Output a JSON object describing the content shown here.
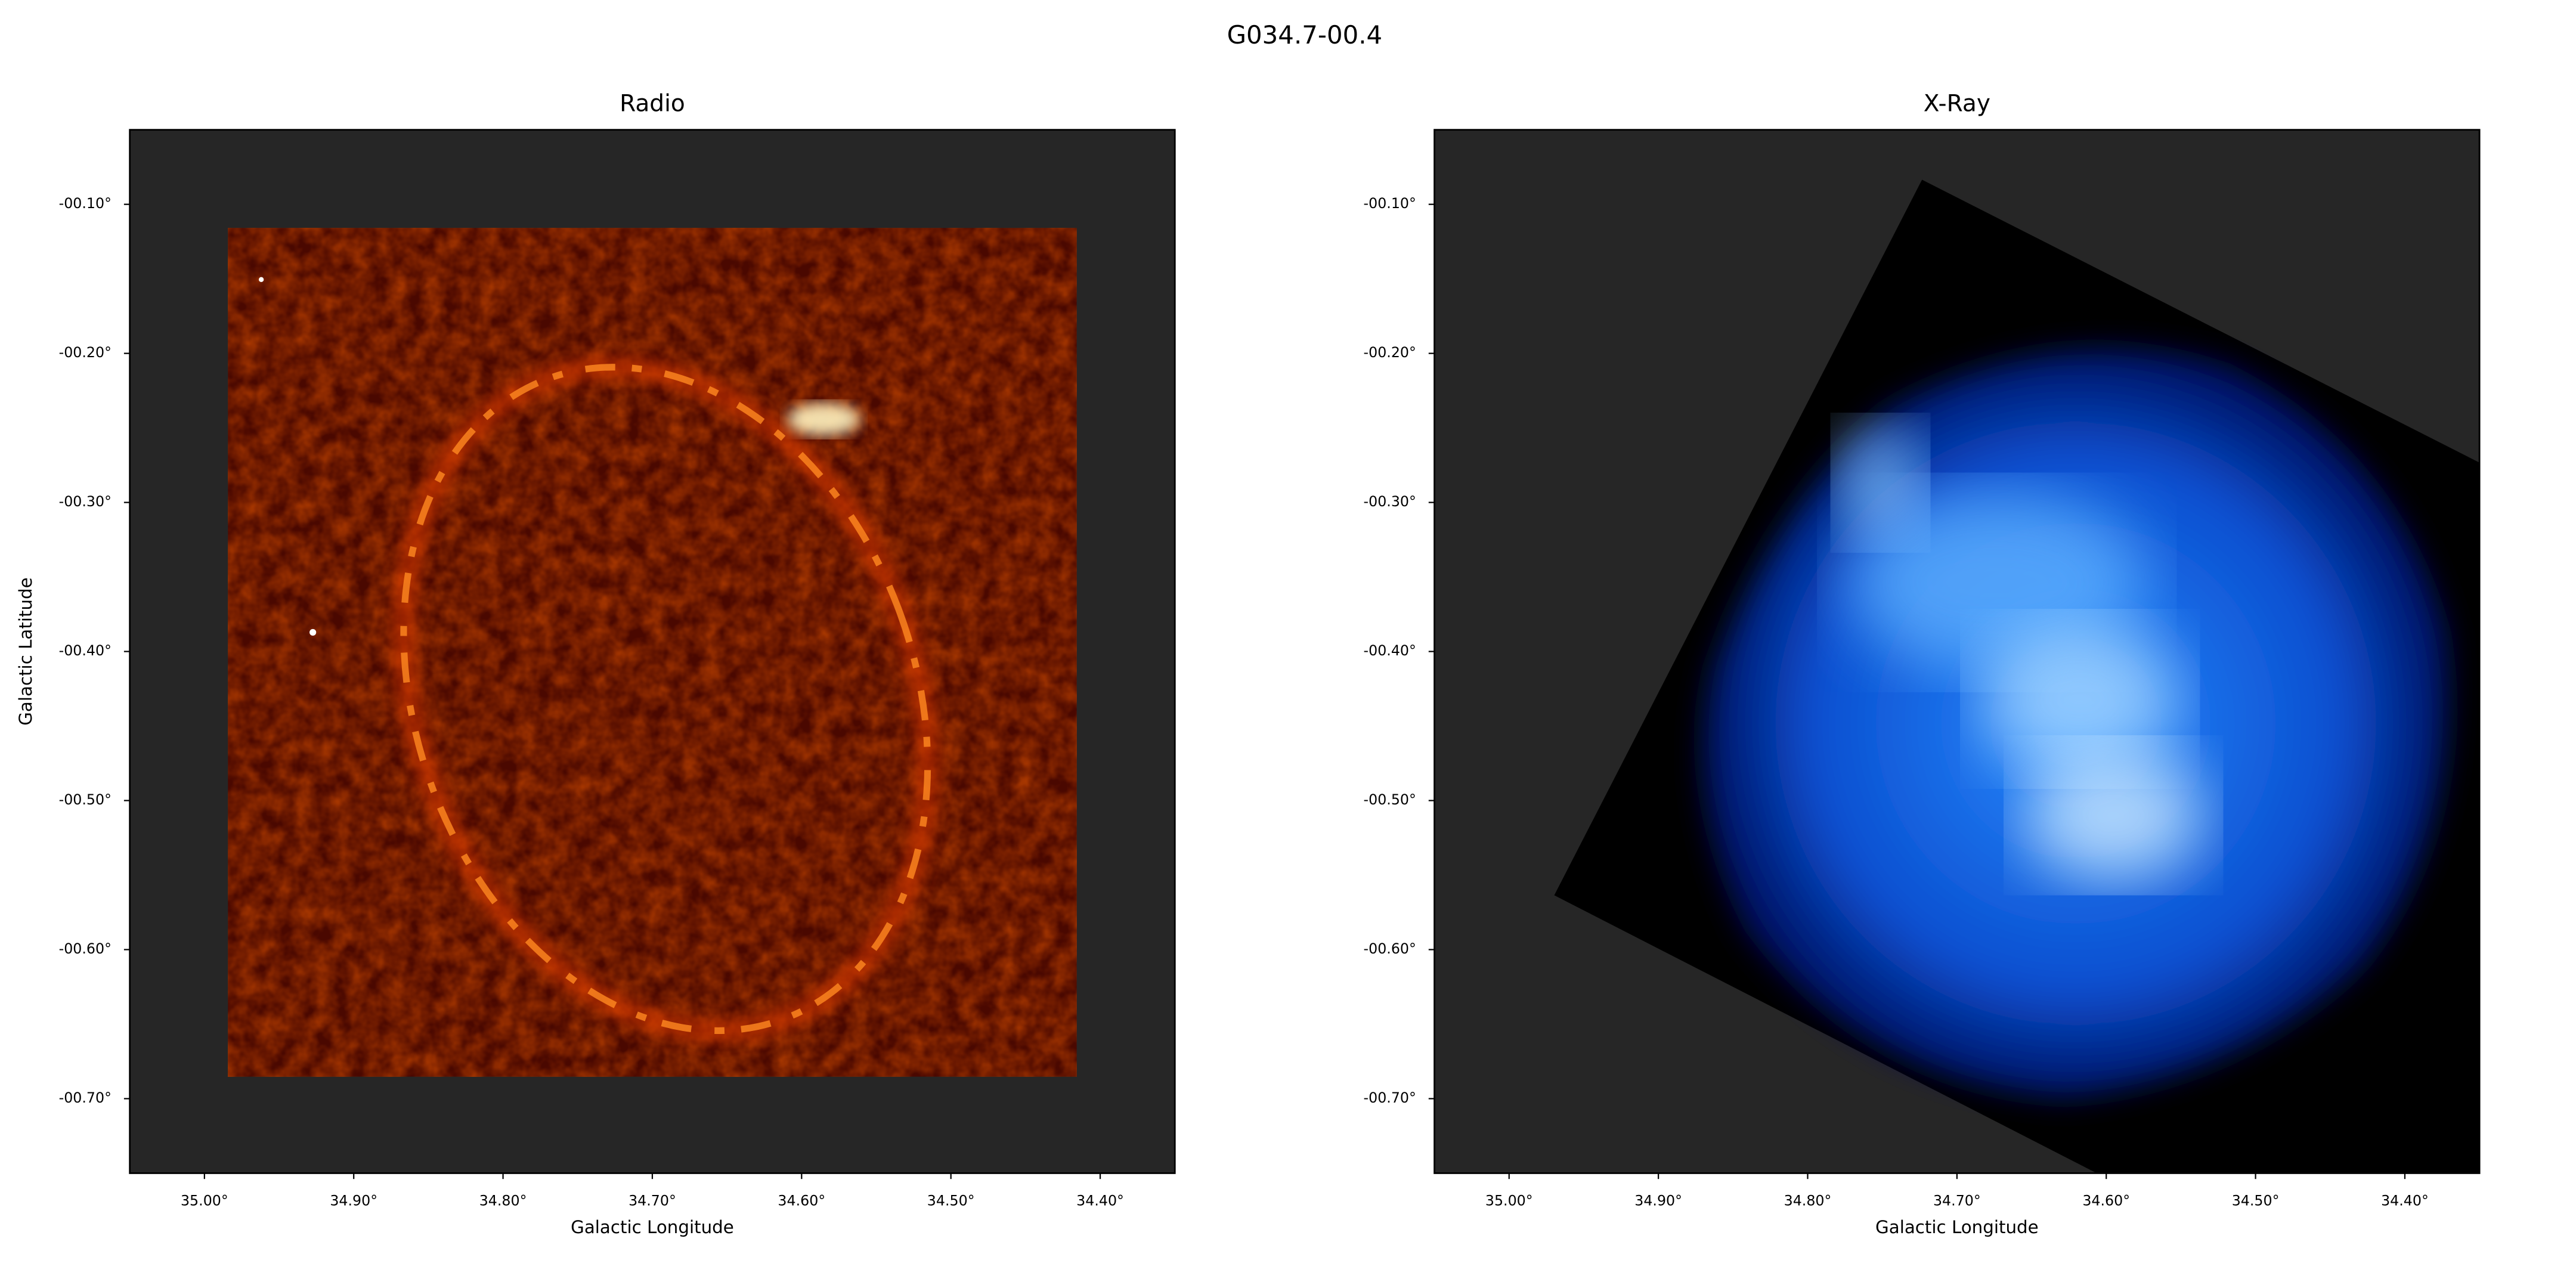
{
  "title": "G034.7-00.4",
  "chart_data": [
    {
      "type": "image",
      "title": "Radio",
      "xlabel": "Galactic Longitude",
      "ylabel": "Galactic Latitude",
      "xlim": [
        35.05,
        34.35
      ],
      "ylim": [
        -0.75,
        -0.05
      ],
      "xticks": [
        {
          "value": 35.0,
          "label": "35.00°"
        },
        {
          "value": 34.9,
          "label": "34.90°"
        },
        {
          "value": 34.8,
          "label": "34.80°"
        },
        {
          "value": 34.7,
          "label": "34.70°"
        },
        {
          "value": 34.6,
          "label": "34.60°"
        },
        {
          "value": 34.5,
          "label": "34.50°"
        },
        {
          "value": 34.4,
          "label": "34.40°"
        }
      ],
      "yticks": [
        {
          "value": -0.1,
          "label": "-00.10°"
        },
        {
          "value": -0.2,
          "label": "-00.20°"
        },
        {
          "value": -0.3,
          "label": "-00.30°"
        },
        {
          "value": -0.4,
          "label": "-00.40°"
        },
        {
          "value": -0.5,
          "label": "-00.50°"
        },
        {
          "value": -0.6,
          "label": "-00.60°"
        },
        {
          "value": -0.7,
          "label": "-00.70°"
        }
      ]
    },
    {
      "type": "image",
      "title": "X-Ray",
      "xlabel": "Galactic Longitude",
      "xlim": [
        35.05,
        34.35
      ],
      "ylim": [
        -0.75,
        -0.05
      ],
      "xticks": [
        {
          "value": 35.0,
          "label": "35.00°"
        },
        {
          "value": 34.9,
          "label": "34.90°"
        },
        {
          "value": 34.8,
          "label": "34.80°"
        },
        {
          "value": 34.7,
          "label": "34.70°"
        },
        {
          "value": 34.6,
          "label": "34.60°"
        },
        {
          "value": 34.5,
          "label": "34.50°"
        },
        {
          "value": 34.4,
          "label": "34.40°"
        }
      ],
      "yticks": [
        {
          "value": -0.1,
          "label": "-00.10°"
        },
        {
          "value": -0.2,
          "label": "-00.20°"
        },
        {
          "value": -0.3,
          "label": "-00.30°"
        },
        {
          "value": -0.4,
          "label": "-00.40°"
        },
        {
          "value": -0.5,
          "label": "-00.50°"
        },
        {
          "value": -0.6,
          "label": "-00.60°"
        },
        {
          "value": -0.7,
          "label": "-00.70°"
        }
      ]
    }
  ]
}
